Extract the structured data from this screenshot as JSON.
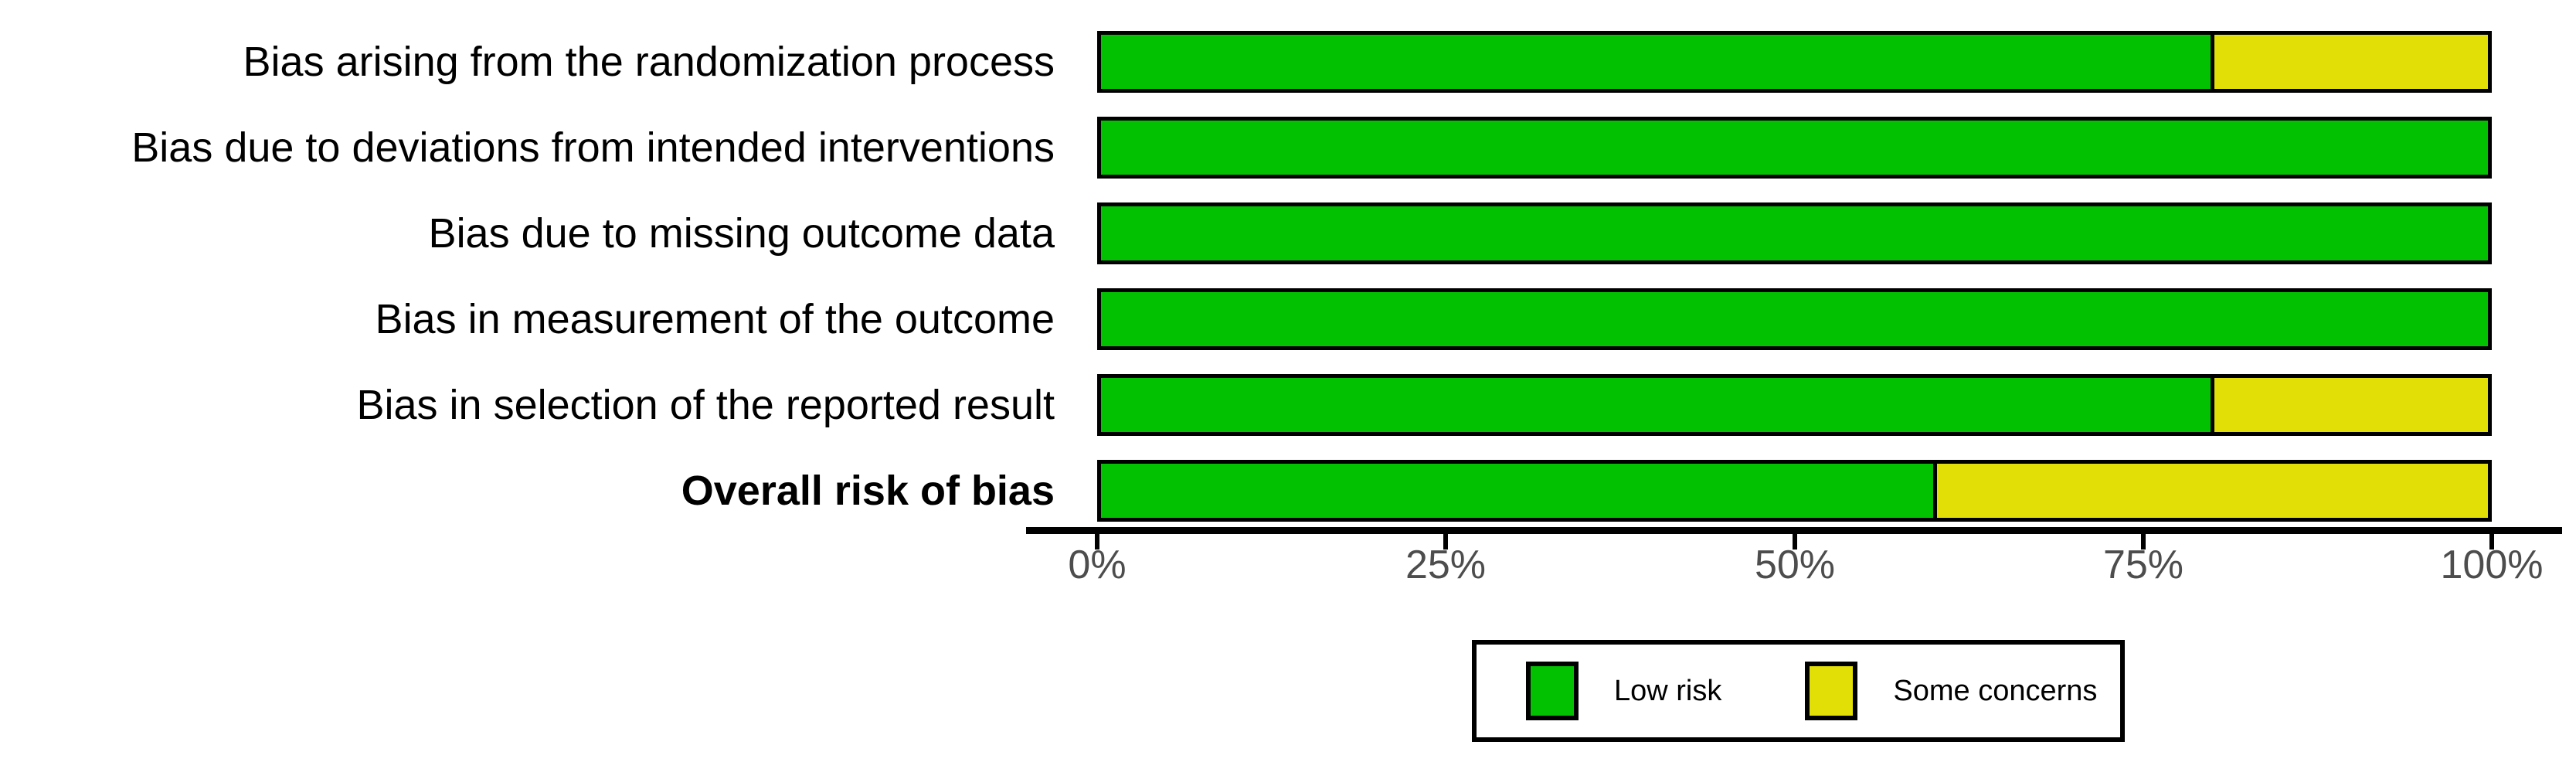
{
  "chart_data": {
    "type": "bar",
    "orientation": "horizontal",
    "stacked": true,
    "title": "",
    "xlabel": "",
    "ylabel": "",
    "categories": [
      "Bias arising from the randomization process",
      "Bias due to deviations from intended interventions",
      "Bias due to missing outcome data",
      "Bias in measurement of the outcome",
      "Bias in selection of the reported result",
      "Overall risk of bias"
    ],
    "bold_categories": [
      "Overall risk of bias"
    ],
    "series": [
      {
        "name": "Low risk",
        "color": "#02C100",
        "values": [
          80,
          100,
          100,
          100,
          80,
          60
        ]
      },
      {
        "name": "Some concerns",
        "color": "#E2DF07",
        "values": [
          20,
          0,
          0,
          0,
          20,
          40
        ]
      }
    ],
    "xlim": [
      0,
      100
    ],
    "x_ticks": [
      {
        "value": 0,
        "label": "0%"
      },
      {
        "value": 25,
        "label": "25%"
      },
      {
        "value": 50,
        "label": "50%"
      },
      {
        "value": 75,
        "label": "75%"
      },
      {
        "value": 100,
        "label": "100%"
      }
    ],
    "grid": false,
    "legend_position": "bottom",
    "bar_border_color": "#000000",
    "axis_color": "#000000",
    "tick_label_color": "#4d4d4d"
  },
  "legend": {
    "items": [
      {
        "label": "Low risk",
        "color": "#02C100"
      },
      {
        "label": "Some concerns",
        "color": "#E2DF07"
      }
    ]
  }
}
